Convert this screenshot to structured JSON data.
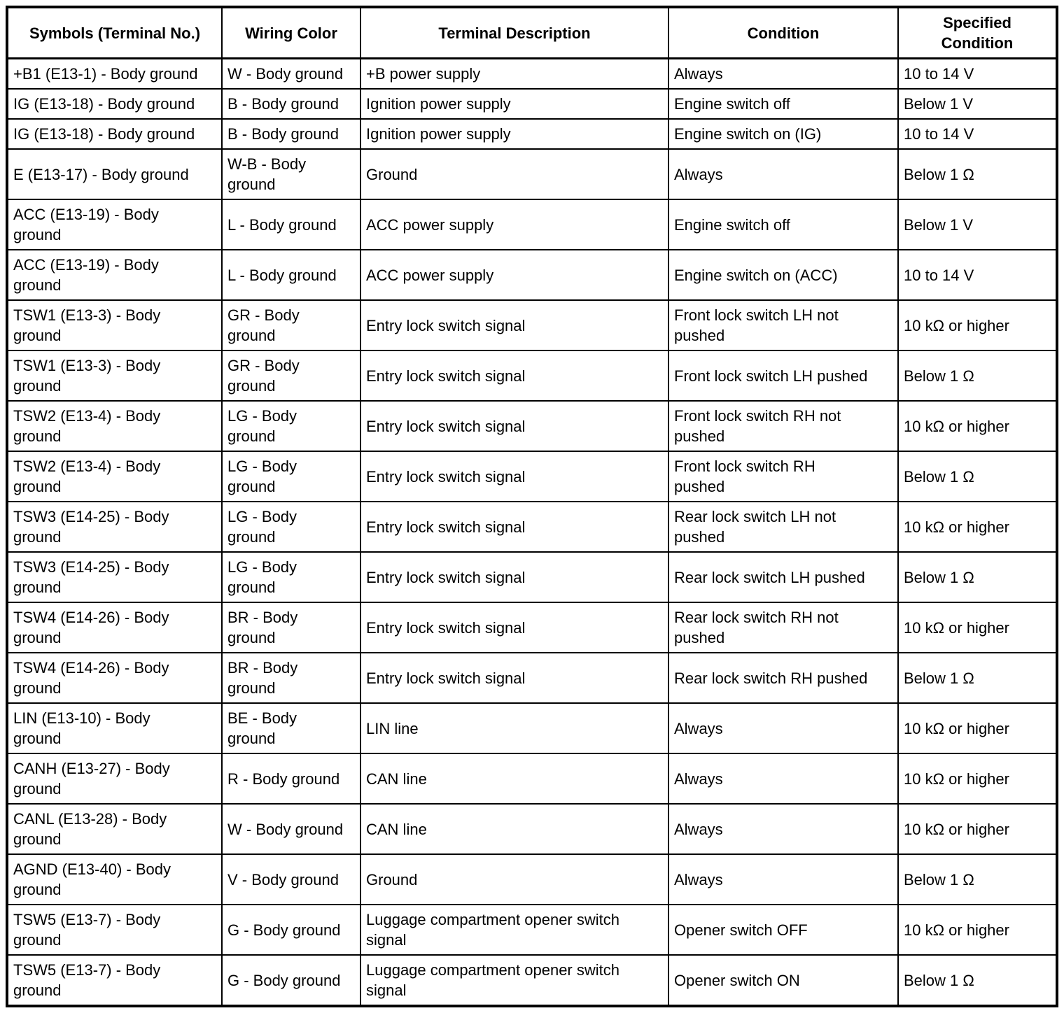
{
  "colors": {
    "background": "#ffffff",
    "text": "#000000",
    "border": "#000000"
  },
  "table": {
    "columns": [
      "Symbols (Terminal No.)",
      "Wiring Color",
      "Terminal Description",
      "Condition",
      "Specified\nCondition"
    ],
    "rows": [
      [
        "+B1 (E13-1) - Body ground",
        "W - Body ground",
        "+B power supply",
        "Always",
        "10 to 14 V"
      ],
      [
        "IG (E13-18) - Body ground",
        "B - Body ground",
        "Ignition power supply",
        "Engine switch off",
        "Below 1 V"
      ],
      [
        "IG (E13-18) - Body ground",
        "B - Body ground",
        "Ignition power supply",
        "Engine switch on (IG)",
        "10 to 14 V"
      ],
      [
        "E (E13-17) - Body ground",
        "W-B - Body ground",
        "Ground",
        "Always",
        "Below 1 Ω"
      ],
      [
        "ACC (E13-19) - Body ground",
        "L - Body ground",
        "ACC power supply",
        "Engine switch off",
        "Below 1 V"
      ],
      [
        "ACC (E13-19) - Body ground",
        "L - Body ground",
        "ACC power supply",
        "Engine switch on (ACC)",
        "10 to 14 V"
      ],
      [
        "TSW1 (E13-3) - Body ground",
        "GR - Body ground",
        "Entry lock switch signal",
        "Front lock switch LH not pushed",
        "10 kΩ or higher"
      ],
      [
        "TSW1 (E13-3) - Body ground",
        "GR - Body ground",
        "Entry lock switch signal",
        "Front lock switch LH pushed",
        "Below 1 Ω"
      ],
      [
        "TSW2 (E13-4) - Body ground",
        "LG - Body ground",
        "Entry lock switch signal",
        "Front lock switch RH not pushed",
        "10 kΩ or higher"
      ],
      [
        "TSW2 (E13-4) - Body ground",
        "LG - Body ground",
        "Entry lock switch signal",
        "Front lock switch RH pushed",
        "Below 1 Ω"
      ],
      [
        "TSW3 (E14-25) - Body ground",
        "LG - Body ground",
        "Entry lock switch signal",
        "Rear lock switch LH not pushed",
        "10 kΩ or higher"
      ],
      [
        "TSW3 (E14-25) - Body ground",
        "LG - Body ground",
        "Entry lock switch signal",
        "Rear lock switch LH pushed",
        "Below 1 Ω"
      ],
      [
        "TSW4 (E14-26) - Body ground",
        "BR - Body ground",
        "Entry lock switch signal",
        "Rear lock switch RH not pushed",
        "10 kΩ or higher"
      ],
      [
        "TSW4 (E14-26) - Body ground",
        "BR - Body ground",
        "Entry lock switch signal",
        "Rear lock switch RH pushed",
        "Below 1 Ω"
      ],
      [
        "LIN (E13-10) - Body ground",
        "BE - Body ground",
        "LIN line",
        "Always",
        "10 kΩ or higher"
      ],
      [
        "CANH (E13-27) - Body ground",
        "R - Body ground",
        "CAN line",
        "Always",
        "10 kΩ or higher"
      ],
      [
        "CANL (E13-28) - Body ground",
        "W - Body ground",
        "CAN line",
        "Always",
        "10 kΩ or higher"
      ],
      [
        "AGND (E13-40) - Body ground",
        "V - Body ground",
        "Ground",
        "Always",
        "Below 1 Ω"
      ],
      [
        "TSW5 (E13-7) - Body ground",
        "G - Body ground",
        "Luggage compartment opener switch signal",
        "Opener switch OFF",
        "10 kΩ or higher"
      ],
      [
        "TSW5 (E13-7) - Body ground",
        "G - Body ground",
        "Luggage compartment opener switch signal",
        "Opener switch ON",
        "Below 1 Ω"
      ]
    ]
  }
}
